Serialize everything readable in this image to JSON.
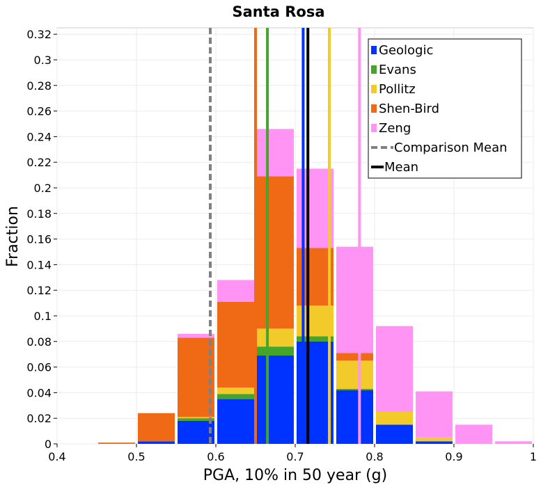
{
  "chart_data": {
    "type": "bar",
    "stacked": true,
    "title": "Santa Rosa",
    "xlabel": "PGA, 10% in 50 year (g)",
    "ylabel": "Fraction",
    "xlim": [
      0.4,
      1.0
    ],
    "ylim": [
      0,
      0.325
    ],
    "x_ticks": [
      "0.4",
      "0.5",
      "0.6",
      "0.7",
      "0.8",
      "0.9",
      "1"
    ],
    "y_ticks": [
      "0",
      "0.02",
      "0.04",
      "0.06",
      "0.08",
      "0.1",
      "0.12",
      "0.14",
      "0.16",
      "0.18",
      "0.2",
      "0.22",
      "0.24",
      "0.26",
      "0.28",
      "0.3",
      "0.32"
    ],
    "bin_centers": [
      0.425,
      0.475,
      0.525,
      0.575,
      0.625,
      0.675,
      0.725,
      0.775,
      0.825,
      0.875,
      0.925,
      0.975
    ],
    "bin_width": 0.05,
    "series": [
      {
        "name": "Geologic",
        "color": "#0033ff",
        "values": [
          0,
          0,
          0.002,
          0.018,
          0.035,
          0.069,
          0.08,
          0.042,
          0.015,
          0.002,
          0,
          0
        ]
      },
      {
        "name": "Evans",
        "color": "#44a52a",
        "values": [
          0,
          0,
          0,
          0.002,
          0.004,
          0.007,
          0.004,
          0.001,
          0,
          0,
          0,
          0
        ]
      },
      {
        "name": "Pollitz",
        "color": "#f2cb2a",
        "values": [
          0,
          0,
          0,
          0.001,
          0.005,
          0.014,
          0.024,
          0.022,
          0.01,
          0.003,
          0,
          0
        ]
      },
      {
        "name": "Shen-Bird",
        "color": "#f06a16",
        "values": [
          0,
          0.001,
          0.022,
          0.062,
          0.067,
          0.119,
          0.045,
          0.006,
          0,
          0,
          0,
          0
        ]
      },
      {
        "name": "Zeng",
        "color": "#ff94f5",
        "values": [
          0,
          0,
          0,
          0.003,
          0.017,
          0.037,
          0.062,
          0.083,
          0.067,
          0.036,
          0.015,
          0.002
        ]
      }
    ],
    "mean_lines": [
      {
        "name": "Geologic",
        "x": 0.71,
        "color": "#0033ff",
        "width": 4
      },
      {
        "name": "Evans",
        "x": 0.665,
        "color": "#44a52a",
        "width": 4
      },
      {
        "name": "Pollitz",
        "x": 0.743,
        "color": "#f2cb2a",
        "width": 4
      },
      {
        "name": "Shen-Bird",
        "x": 0.65,
        "color": "#f06a16",
        "width": 4
      },
      {
        "name": "Zeng",
        "x": 0.781,
        "color": "#ff94f5",
        "width": 4
      }
    ],
    "mean": {
      "x": 0.716,
      "color": "#000000"
    },
    "comparison_mean": {
      "x": 0.593,
      "color": "#808080"
    },
    "legend": {
      "position": "top-right",
      "entries": [
        {
          "label": "Geologic",
          "color": "#0033ff",
          "kind": "square"
        },
        {
          "label": "Evans",
          "color": "#44a52a",
          "kind": "square"
        },
        {
          "label": "Pollitz",
          "color": "#f2cb2a",
          "kind": "square"
        },
        {
          "label": "Shen-Bird",
          "color": "#f06a16",
          "kind": "square"
        },
        {
          "label": "Zeng",
          "color": "#ff94f5",
          "kind": "square"
        },
        {
          "label": "Comparison Mean",
          "color": "#808080",
          "kind": "dashed"
        },
        {
          "label": "Mean",
          "color": "#000000",
          "kind": "solid"
        }
      ]
    },
    "grid": true
  }
}
